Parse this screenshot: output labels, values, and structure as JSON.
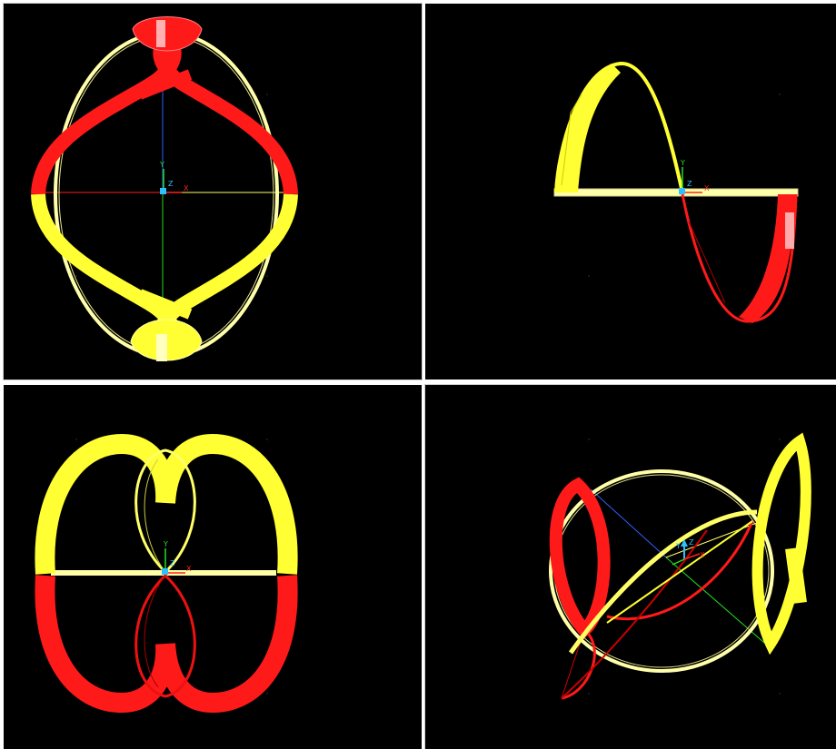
{
  "window": {
    "layout": "2x2 viewports",
    "background_color": "#000000",
    "frame_color": "#ffffff"
  },
  "colors": {
    "ribbon_yellow": "#ffff33",
    "ribbon_red": "#ff1a1a",
    "wire_yellow": "#ffffaa",
    "wire_red": "#cc0000",
    "axis_x": "#ff2020",
    "axis_y": "#20e020",
    "axis_z": "#3060ff",
    "triad_z": "#30c0ff"
  },
  "viewports": [
    {
      "id": "top-left",
      "view": "front",
      "triad": {
        "x": "X",
        "y": "Y",
        "z": "Z"
      }
    },
    {
      "id": "top-right",
      "view": "top",
      "triad": {
        "x": "X",
        "y": "Y",
        "z": "Z"
      }
    },
    {
      "id": "bottom-left",
      "view": "side",
      "triad": {
        "x": "X",
        "y": "Y",
        "z": "Z"
      }
    },
    {
      "id": "bottom-right",
      "view": "isometric",
      "triad": {
        "x": "X",
        "y": "Y",
        "z": "Z"
      }
    }
  ]
}
